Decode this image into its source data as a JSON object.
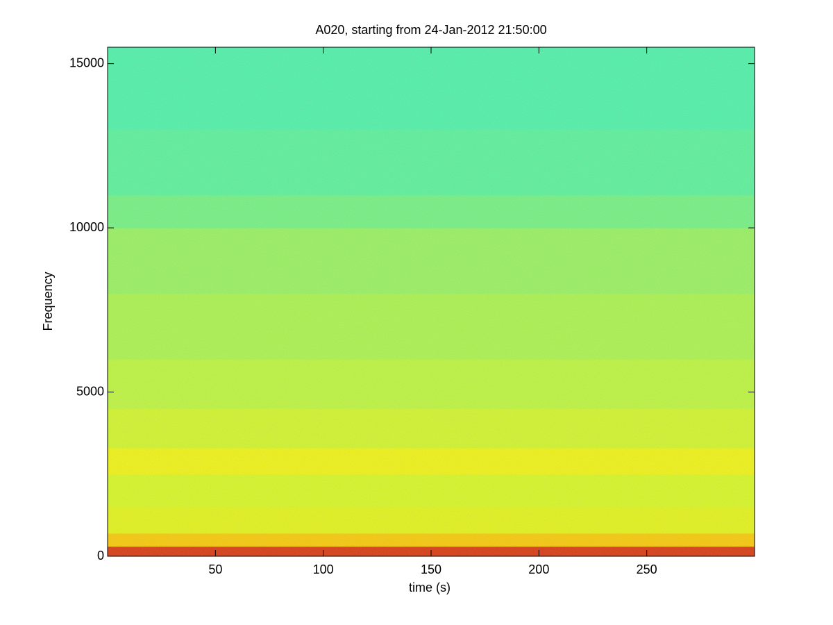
{
  "chart_data": {
    "type": "spectrogram",
    "title": "A020, starting from 24-Jan-2012 21:50:00",
    "xlabel": "time (s)",
    "ylabel": "Frequency",
    "xlim": [
      0,
      300
    ],
    "ylim": [
      0,
      15500
    ],
    "xticks": [
      50,
      100,
      150,
      200,
      250
    ],
    "yticks": [
      0,
      5000,
      10000,
      15000
    ],
    "band_edges": [
      0,
      300,
      700,
      1500,
      2500,
      3300,
      4500,
      6000,
      8000,
      10000,
      11000,
      13000,
      15500
    ],
    "band_colors": [
      "#d83a10",
      "#f6c808",
      "#e2f21a",
      "#d6f624",
      "#eef214",
      "#d0f42c",
      "#bcf43e",
      "#aaf24e",
      "#98f060",
      "#74f082",
      "#5cf09a",
      "#50f0a8"
    ]
  }
}
